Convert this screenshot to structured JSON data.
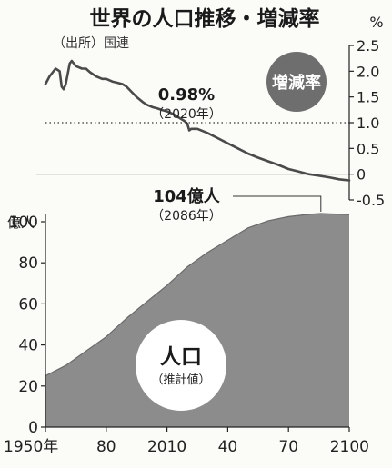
{
  "header": {
    "title": "世界の人口推移・増減率",
    "source": "（出所）国連"
  },
  "chart_data": [
    {
      "type": "line",
      "name": "growth-rate",
      "badge": "増減率",
      "unit": "%",
      "ylim": [
        -0.5,
        2.5
      ],
      "yticks": [
        "2.5",
        "2.0",
        "1.5",
        "1.0",
        "0.5",
        "0",
        "-0.5"
      ],
      "reference_line": 1.0,
      "x": [
        1950,
        1952,
        1955,
        1957,
        1958,
        1959,
        1960,
        1962,
        1963,
        1965,
        1968,
        1970,
        1972,
        1975,
        1978,
        1980,
        1983,
        1985,
        1988,
        1990,
        1993,
        1995,
        1998,
        2000,
        2003,
        2005,
        2008,
        2010,
        2013,
        2015,
        2018,
        2019,
        2020,
        2021,
        2022,
        2025,
        2030,
        2035,
        2040,
        2045,
        2050,
        2055,
        2060,
        2065,
        2070,
        2075,
        2080,
        2085,
        2090,
        2095,
        2100
      ],
      "values": [
        1.75,
        1.9,
        2.05,
        2.0,
        1.7,
        1.65,
        1.75,
        2.15,
        2.2,
        2.1,
        2.05,
        2.05,
        1.98,
        1.9,
        1.85,
        1.85,
        1.8,
        1.78,
        1.75,
        1.7,
        1.58,
        1.5,
        1.4,
        1.35,
        1.3,
        1.28,
        1.24,
        1.22,
        1.17,
        1.12,
        1.05,
        1.02,
        0.98,
        0.85,
        0.88,
        0.88,
        0.8,
        0.7,
        0.6,
        0.5,
        0.4,
        0.32,
        0.25,
        0.18,
        0.1,
        0.05,
        0.0,
        -0.03,
        -0.06,
        -0.1,
        -0.12
      ],
      "annotation": {
        "value": "0.98%",
        "label": "（2020年）",
        "x": 2020,
        "y": 0.98
      }
    },
    {
      "type": "area",
      "name": "population",
      "unit": "億人",
      "label_main": "人口",
      "label_sub": "（推計値）",
      "ylim": [
        0,
        110
      ],
      "yticks": [
        "100",
        "80",
        "60",
        "40",
        "20",
        "0"
      ],
      "x": [
        1950,
        1960,
        1970,
        1980,
        1990,
        2000,
        2010,
        2020,
        2030,
        2040,
        2050,
        2060,
        2070,
        2080,
        2086,
        2090,
        2100
      ],
      "values": [
        25,
        30,
        37,
        44,
        53,
        61,
        69,
        78,
        85,
        91,
        97,
        100.5,
        102.5,
        103.6,
        104,
        103.8,
        103.5
      ],
      "annotation": {
        "value": "104億人",
        "label": "（2086年）",
        "x": 2086,
        "y": 104
      }
    }
  ],
  "xaxis": {
    "ticks": [
      "1950年",
      "80",
      "2010",
      "40",
      "70",
      "2100"
    ],
    "tick_values": [
      1950,
      1980,
      2010,
      2040,
      2070,
      2100
    ]
  }
}
